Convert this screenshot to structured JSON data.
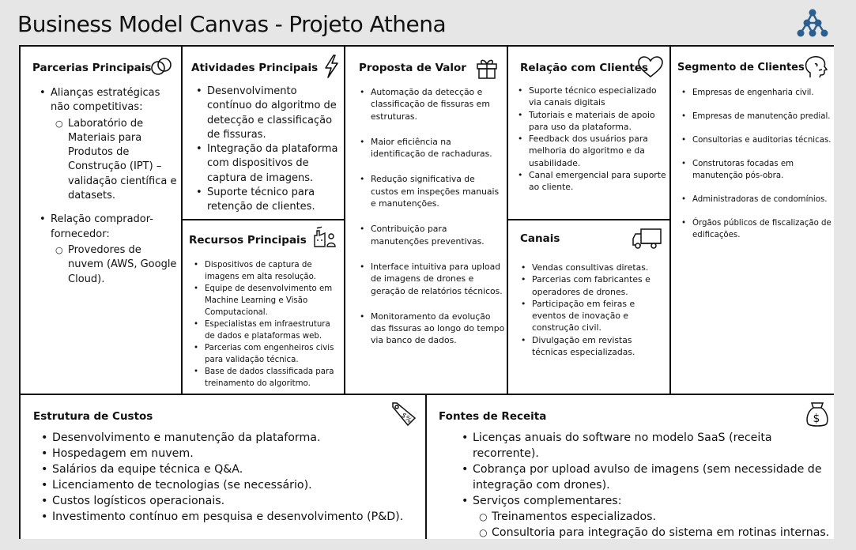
{
  "header": {
    "title_left": "Business Model Canvas",
    "dash": "-",
    "title_right": "Projeto Athena"
  },
  "partners": {
    "title": "Parcerias Principais",
    "items": [
      "Alianças estratégicas não competitivas:",
      "Laboratório de Materiais para Produtos de Construção (IPT) – validação científica e datasets.",
      "Relação comprador-fornecedor:",
      "Provedores de nuvem (AWS, Google Cloud)."
    ]
  },
  "activities": {
    "title": "Atividades Principais",
    "items": [
      "Desenvolvimento contínuo do algoritmo de detecção e classificação de fissuras.",
      "Integração da plataforma com dispositivos de captura de imagens.",
      "Suporte técnico para retenção de clientes."
    ]
  },
  "resources": {
    "title": "Recursos Principais",
    "items": [
      "Dispositivos de captura de imagens em alta resolução.",
      "Equipe de desenvolvimento em Machine Learning e Visão Computacional.",
      "Especialistas em infraestrutura de dados e plataformas web.",
      "Parcerias com engenheiros civis para validação técnica.",
      "Base de dados classificada para treinamento do algoritmo."
    ]
  },
  "value": {
    "title": "Proposta de Valor",
    "items": [
      "Automação da detecção e classificação de fissuras em estruturas.",
      "Maior eficiência na identificação de rachaduras.",
      "Redução significativa de custos em inspeções manuais e manutenções.",
      "Contribuição para manutenções preventivas.",
      "Interface intuitiva para upload de imagens de drones e geração de relatórios técnicos.",
      "Monitoramento da evolução das fissuras ao longo do tempo via banco de dados."
    ]
  },
  "relationship": {
    "title": "Relação com Clientes",
    "items": [
      "Suporte técnico especializado via canais digitais",
      "Tutoriais e materiais de apoio para uso da plataforma.",
      "Feedback dos usuários para melhoria do algoritmo e da usabilidade.",
      "Canal emergencial para suporte ao cliente."
    ]
  },
  "channels": {
    "title": "Canais",
    "items": [
      "Vendas consultivas diretas.",
      "Parcerias com fabricantes e operadores de drones.",
      "Participação em feiras e eventos de inovação e construção civil.",
      "Divulgação em revistas técnicas especializadas."
    ]
  },
  "segments": {
    "title": "Segmento de Clientes",
    "items": [
      "Empresas de engenharia civil.",
      "Empresas de manutenção predial.",
      "Consultorias e auditorias técnicas.",
      "Construtoras focadas em manutenção pós-obra.",
      "Administradoras de condomínios.",
      "Órgãos públicos de fiscalização de edificações."
    ]
  },
  "costs": {
    "title": "Estrutura de Custos",
    "items": [
      "Desenvolvimento e manutenção da plataforma.",
      "Hospedagem em nuvem.",
      "Salários da equipe técnica e Q&A.",
      "Licenciamento de tecnologias (se necessário).",
      "Custos logísticos operacionais.",
      "Investimento contínuo em pesquisa e desenvolvimento (P&D)."
    ]
  },
  "revenue": {
    "title": "Fontes de Receita",
    "items": [
      "Licenças anuais do software no modelo SaaS (receita recorrente).",
      "Cobrança por upload avulso de imagens (sem necessidade de integração com drones).",
      "Serviços complementares:",
      "Treinamentos especializados.",
      "Consultoria para integração do sistema em rotinas internas."
    ]
  },
  "icons": {
    "logo": "molecule-logo",
    "partners": "interlocking-rings-icon",
    "activities": "lightning-icon",
    "resources": "factory-person-icon",
    "value": "gift-icon",
    "relationship": "heart-icon",
    "channels": "truck-icon",
    "segments": "person-head-icon",
    "costs": "price-tag-icon",
    "revenue": "money-bag-icon"
  }
}
